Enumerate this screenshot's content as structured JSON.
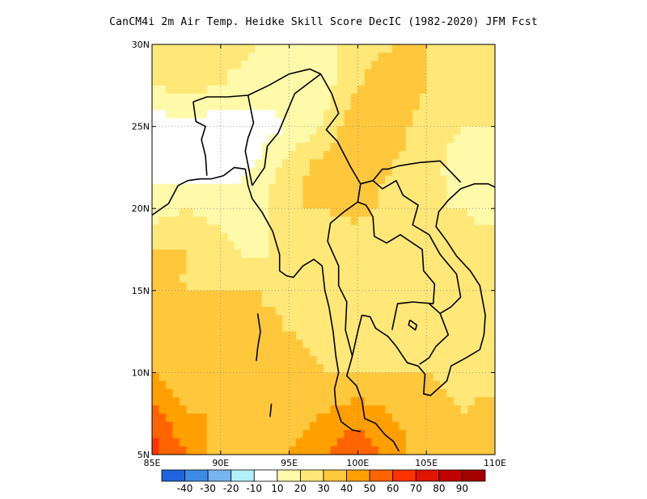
{
  "title": "CanCM4i  2m Air Temp. Heidke Skill Score DecIC (1982-2020) JFM Fcst",
  "map": {
    "lon_range": [
      85,
      110
    ],
    "lat_range": [
      5,
      30
    ],
    "lon_ticks": [
      {
        "value": 85,
        "label": "85E"
      },
      {
        "value": 90,
        "label": "90E"
      },
      {
        "value": 95,
        "label": "95E"
      },
      {
        "value": 100,
        "label": "100E"
      },
      {
        "value": 105,
        "label": "105E"
      },
      {
        "value": 110,
        "label": "110E"
      }
    ],
    "lat_ticks": [
      {
        "value": 5,
        "label": "5N"
      },
      {
        "value": 10,
        "label": "10N"
      },
      {
        "value": 15,
        "label": "15N"
      },
      {
        "value": 20,
        "label": "20N"
      },
      {
        "value": 25,
        "label": "25N"
      },
      {
        "value": 30,
        "label": "30N"
      }
    ],
    "gridlines": "dotted"
  },
  "colorbar": {
    "colors": [
      "#1e64dc",
      "#3c8ce6",
      "#78b4f0",
      "#b4f0fa",
      "#ffffff",
      "#fffaaa",
      "#ffe878",
      "#ffc83c",
      "#ffa000",
      "#ff6400",
      "#ff3200",
      "#e11400",
      "#c00000",
      "#a50000"
    ],
    "labels": [
      "-40",
      "-30",
      "-20",
      "-10",
      "10",
      "20",
      "30",
      "40",
      "50",
      "60",
      "70",
      "80",
      "90"
    ]
  },
  "chart_data": {
    "type": "heatmap",
    "title": "CanCM4i  2m Air Temp. Heidke Skill Score DecIC (1982-2020) JFM Fcst",
    "x_label": "",
    "y_label": "",
    "x_range": [
      85,
      110
    ],
    "y_range": [
      5,
      30
    ],
    "levels": [
      -40,
      -30,
      -20,
      -10,
      10,
      20,
      30,
      40,
      50,
      60,
      70,
      80,
      90
    ],
    "legend_position": "bottom",
    "grid": true,
    "x": [
      85,
      87.5,
      90,
      92.5,
      95,
      97.5,
      100,
      102.5,
      105,
      107.5,
      110
    ],
    "y": [
      30,
      27.5,
      25,
      22.5,
      20,
      17.5,
      15,
      12.5,
      10,
      7.5,
      5
    ],
    "values": [
      [
        25,
        30,
        25,
        20,
        15,
        20,
        20,
        30,
        30,
        30,
        25
      ],
      [
        20,
        25,
        20,
        15,
        15,
        15,
        30,
        40,
        30,
        25,
        30
      ],
      [
        5,
        5,
        5,
        5,
        10,
        20,
        40,
        35,
        25,
        20,
        20
      ],
      [
        5,
        5,
        5,
        10,
        25,
        35,
        35,
        30,
        25,
        15,
        20
      ],
      [
        15,
        20,
        15,
        15,
        30,
        30,
        35,
        25,
        20,
        20,
        15
      ],
      [
        30,
        30,
        25,
        15,
        25,
        20,
        20,
        20,
        30,
        25,
        25
      ],
      [
        30,
        30,
        30,
        30,
        25,
        20,
        25,
        30,
        25,
        25,
        20
      ],
      [
        35,
        35,
        30,
        35,
        30,
        25,
        25,
        25,
        30,
        30,
        25
      ],
      [
        40,
        30,
        35,
        30,
        35,
        30,
        30,
        30,
        30,
        25,
        25
      ],
      [
        55,
        40,
        40,
        40,
        35,
        40,
        45,
        40,
        35,
        30,
        35
      ],
      [
        65,
        50,
        35,
        35,
        40,
        50,
        60,
        45,
        35,
        35,
        40
      ]
    ]
  }
}
